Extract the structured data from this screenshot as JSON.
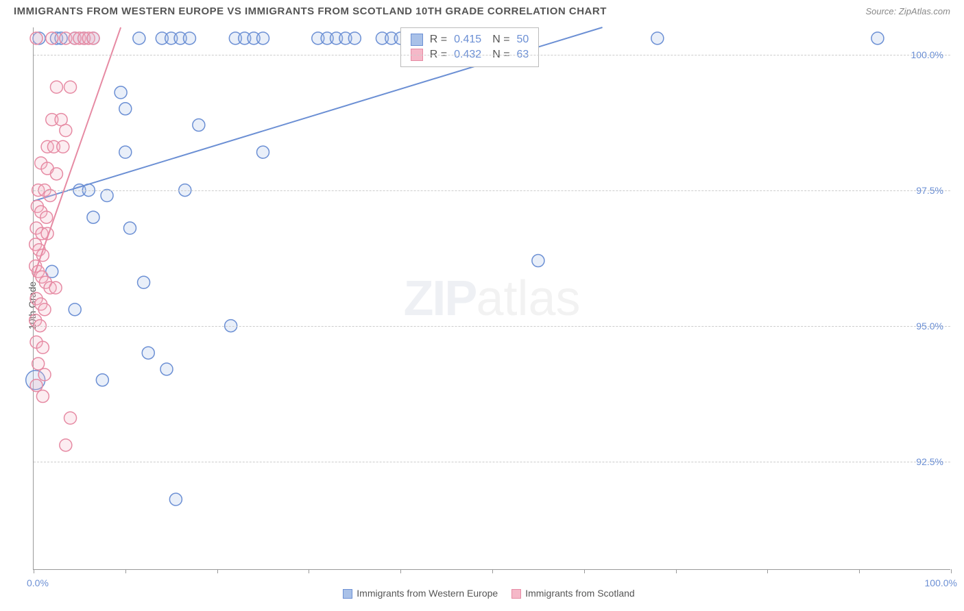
{
  "header": {
    "title": "IMMIGRANTS FROM WESTERN EUROPE VS IMMIGRANTS FROM SCOTLAND 10TH GRADE CORRELATION CHART",
    "source_prefix": "Source: ",
    "source": "ZipAtlas.com"
  },
  "chart": {
    "type": "scatter",
    "y_axis_label": "10th Grade",
    "background_color": "#ffffff",
    "grid_color": "#cccccc",
    "axis_color": "#999999",
    "label_color": "#555555",
    "tick_label_color": "#6b8fd4",
    "xlim": [
      0,
      100
    ],
    "ylim": [
      90.5,
      100.5
    ],
    "x_min_label": "0.0%",
    "x_max_label": "100.0%",
    "x_ticks": [
      0,
      10,
      20,
      30,
      40,
      50,
      60,
      70,
      80,
      90,
      100
    ],
    "y_ticks": [
      {
        "value": 92.5,
        "label": "92.5%"
      },
      {
        "value": 95.0,
        "label": "95.0%"
      },
      {
        "value": 97.5,
        "label": "97.5%"
      },
      {
        "value": 100.0,
        "label": "100.0%"
      }
    ],
    "marker_radius": 9,
    "marker_stroke_width": 1.5,
    "marker_fill_opacity": 0.25,
    "trend_line_width": 2,
    "watermark_zip": "ZIP",
    "watermark_atlas": "atlas",
    "series": [
      {
        "name": "Immigrants from Western Europe",
        "color": "#6b8fd4",
        "fill": "#a9c1e8",
        "R": "0.415",
        "N": "50",
        "trend": {
          "x1": 0,
          "y1": 97.3,
          "x2": 62,
          "y2": 100.5
        },
        "points": [
          [
            0.2,
            94.0,
            14
          ],
          [
            0.6,
            100.3
          ],
          [
            2.5,
            100.3
          ],
          [
            3.0,
            100.3
          ],
          [
            4.5,
            100.3
          ],
          [
            5.5,
            100.3
          ],
          [
            6.5,
            100.3
          ],
          [
            11.5,
            100.3
          ],
          [
            14.0,
            100.3
          ],
          [
            15.0,
            100.3
          ],
          [
            16.0,
            100.3
          ],
          [
            17.0,
            100.3
          ],
          [
            22.0,
            100.3
          ],
          [
            23.0,
            100.3
          ],
          [
            24.0,
            100.3
          ],
          [
            25.0,
            100.3
          ],
          [
            31.0,
            100.3
          ],
          [
            32.0,
            100.3
          ],
          [
            33.0,
            100.3
          ],
          [
            34.0,
            100.3
          ],
          [
            35.0,
            100.3
          ],
          [
            38.0,
            100.3
          ],
          [
            39.0,
            100.3
          ],
          [
            40.0,
            100.3
          ],
          [
            48.0,
            100.3
          ],
          [
            49.0,
            100.3
          ],
          [
            68.0,
            100.3
          ],
          [
            92.0,
            100.3
          ],
          [
            9.5,
            99.3
          ],
          [
            10.0,
            99.0
          ],
          [
            18.0,
            98.7
          ],
          [
            10.0,
            98.2
          ],
          [
            25.0,
            98.2
          ],
          [
            5.0,
            97.5
          ],
          [
            6.0,
            97.5
          ],
          [
            8.0,
            97.4
          ],
          [
            16.5,
            97.5
          ],
          [
            6.5,
            97.0
          ],
          [
            10.5,
            96.8
          ],
          [
            55.0,
            96.2
          ],
          [
            2.0,
            96.0
          ],
          [
            12.0,
            95.8
          ],
          [
            4.5,
            95.3
          ],
          [
            21.5,
            95.0
          ],
          [
            12.5,
            94.5
          ],
          [
            14.5,
            94.2
          ],
          [
            7.5,
            94.0
          ],
          [
            15.5,
            91.8
          ]
        ]
      },
      {
        "name": "Immigrants from Scotland",
        "color": "#e68aa3",
        "fill": "#f5b8c8",
        "R": "0.432",
        "N": "63",
        "trend": {
          "x1": 0,
          "y1": 95.9,
          "x2": 9.5,
          "y2": 100.5
        },
        "points": [
          [
            0.3,
            100.3
          ],
          [
            2.0,
            100.3
          ],
          [
            3.5,
            100.3
          ],
          [
            4.5,
            100.3
          ],
          [
            5.0,
            100.3
          ],
          [
            5.5,
            100.3
          ],
          [
            6.0,
            100.3
          ],
          [
            6.5,
            100.3
          ],
          [
            2.5,
            99.4
          ],
          [
            4.0,
            99.4
          ],
          [
            2.0,
            98.8
          ],
          [
            3.0,
            98.8
          ],
          [
            3.5,
            98.6
          ],
          [
            1.5,
            98.3
          ],
          [
            2.2,
            98.3
          ],
          [
            3.2,
            98.3
          ],
          [
            0.8,
            98.0
          ],
          [
            1.5,
            97.9
          ],
          [
            2.5,
            97.8
          ],
          [
            0.5,
            97.5
          ],
          [
            1.2,
            97.5
          ],
          [
            1.8,
            97.4
          ],
          [
            0.4,
            97.2
          ],
          [
            0.8,
            97.1
          ],
          [
            1.4,
            97.0
          ],
          [
            0.3,
            96.8
          ],
          [
            0.9,
            96.7
          ],
          [
            1.5,
            96.7
          ],
          [
            0.2,
            96.5
          ],
          [
            0.6,
            96.4
          ],
          [
            1.0,
            96.3
          ],
          [
            0.2,
            96.1
          ],
          [
            0.5,
            96.0
          ],
          [
            0.9,
            95.9
          ],
          [
            1.3,
            95.8
          ],
          [
            1.8,
            95.7
          ],
          [
            2.4,
            95.7
          ],
          [
            0.3,
            95.5
          ],
          [
            0.8,
            95.4
          ],
          [
            1.2,
            95.3
          ],
          [
            0.2,
            95.1
          ],
          [
            0.7,
            95.0
          ],
          [
            0.3,
            94.7
          ],
          [
            1.0,
            94.6
          ],
          [
            0.5,
            94.3
          ],
          [
            1.2,
            94.1
          ],
          [
            0.3,
            93.9
          ],
          [
            1.0,
            93.7
          ],
          [
            4.0,
            93.3
          ],
          [
            3.5,
            92.8
          ]
        ]
      }
    ],
    "bottom_legend": [
      {
        "swatch_fill": "#a9c1e8",
        "swatch_border": "#6b8fd4",
        "label": "Immigrants from Western Europe"
      },
      {
        "swatch_fill": "#f5b8c8",
        "swatch_border": "#e68aa3",
        "label": "Immigrants from Scotland"
      }
    ],
    "stats_box_labels": {
      "R": "R =",
      "N": "N ="
    }
  }
}
